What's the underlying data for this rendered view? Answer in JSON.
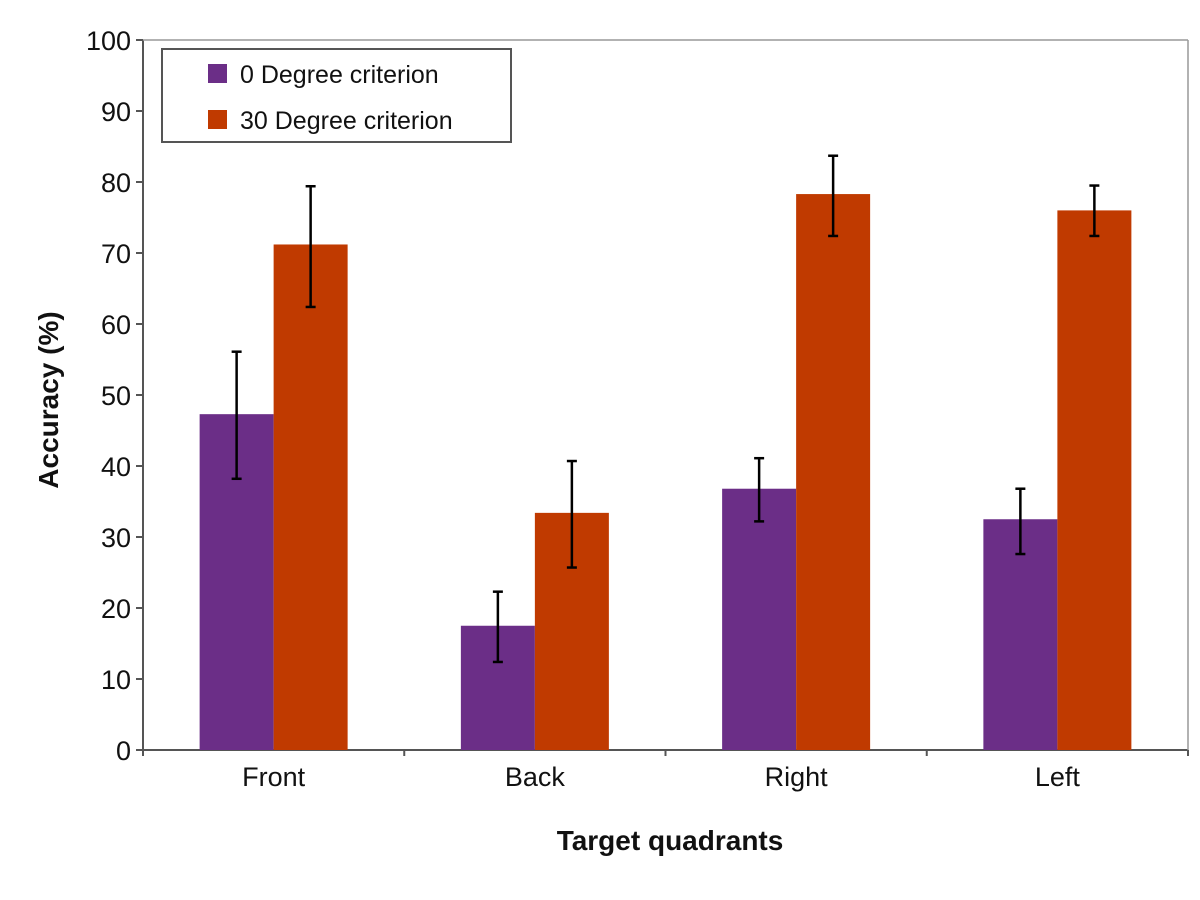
{
  "chart_data": {
    "type": "bar",
    "title": "",
    "xlabel": "Target quadrants",
    "ylabel": "Accuracy (%)",
    "ylim": [
      0,
      100
    ],
    "yticks": [
      "0",
      "10",
      "20",
      "30",
      "40",
      "50",
      "60",
      "70",
      "80",
      "90",
      "100"
    ],
    "categories": [
      "Front",
      "Back",
      "Right",
      "Left"
    ],
    "series": [
      {
        "name": "0 Degree criterion",
        "color": "#6b2e87",
        "values": [
          47.3,
          17.5,
          36.8,
          32.5
        ],
        "error_low": [
          38.2,
          12.4,
          32.2,
          27.6
        ],
        "error_high": [
          56.1,
          22.3,
          41.1,
          36.8
        ]
      },
      {
        "name": "30 Degree criterion",
        "color": "#c03a00",
        "values": [
          71.2,
          33.4,
          78.3,
          76.0
        ],
        "error_low": [
          62.4,
          25.7,
          72.4,
          72.4
        ],
        "error_high": [
          79.4,
          40.7,
          83.7,
          79.5
        ]
      }
    ],
    "legend": "top-left",
    "grid": false
  }
}
